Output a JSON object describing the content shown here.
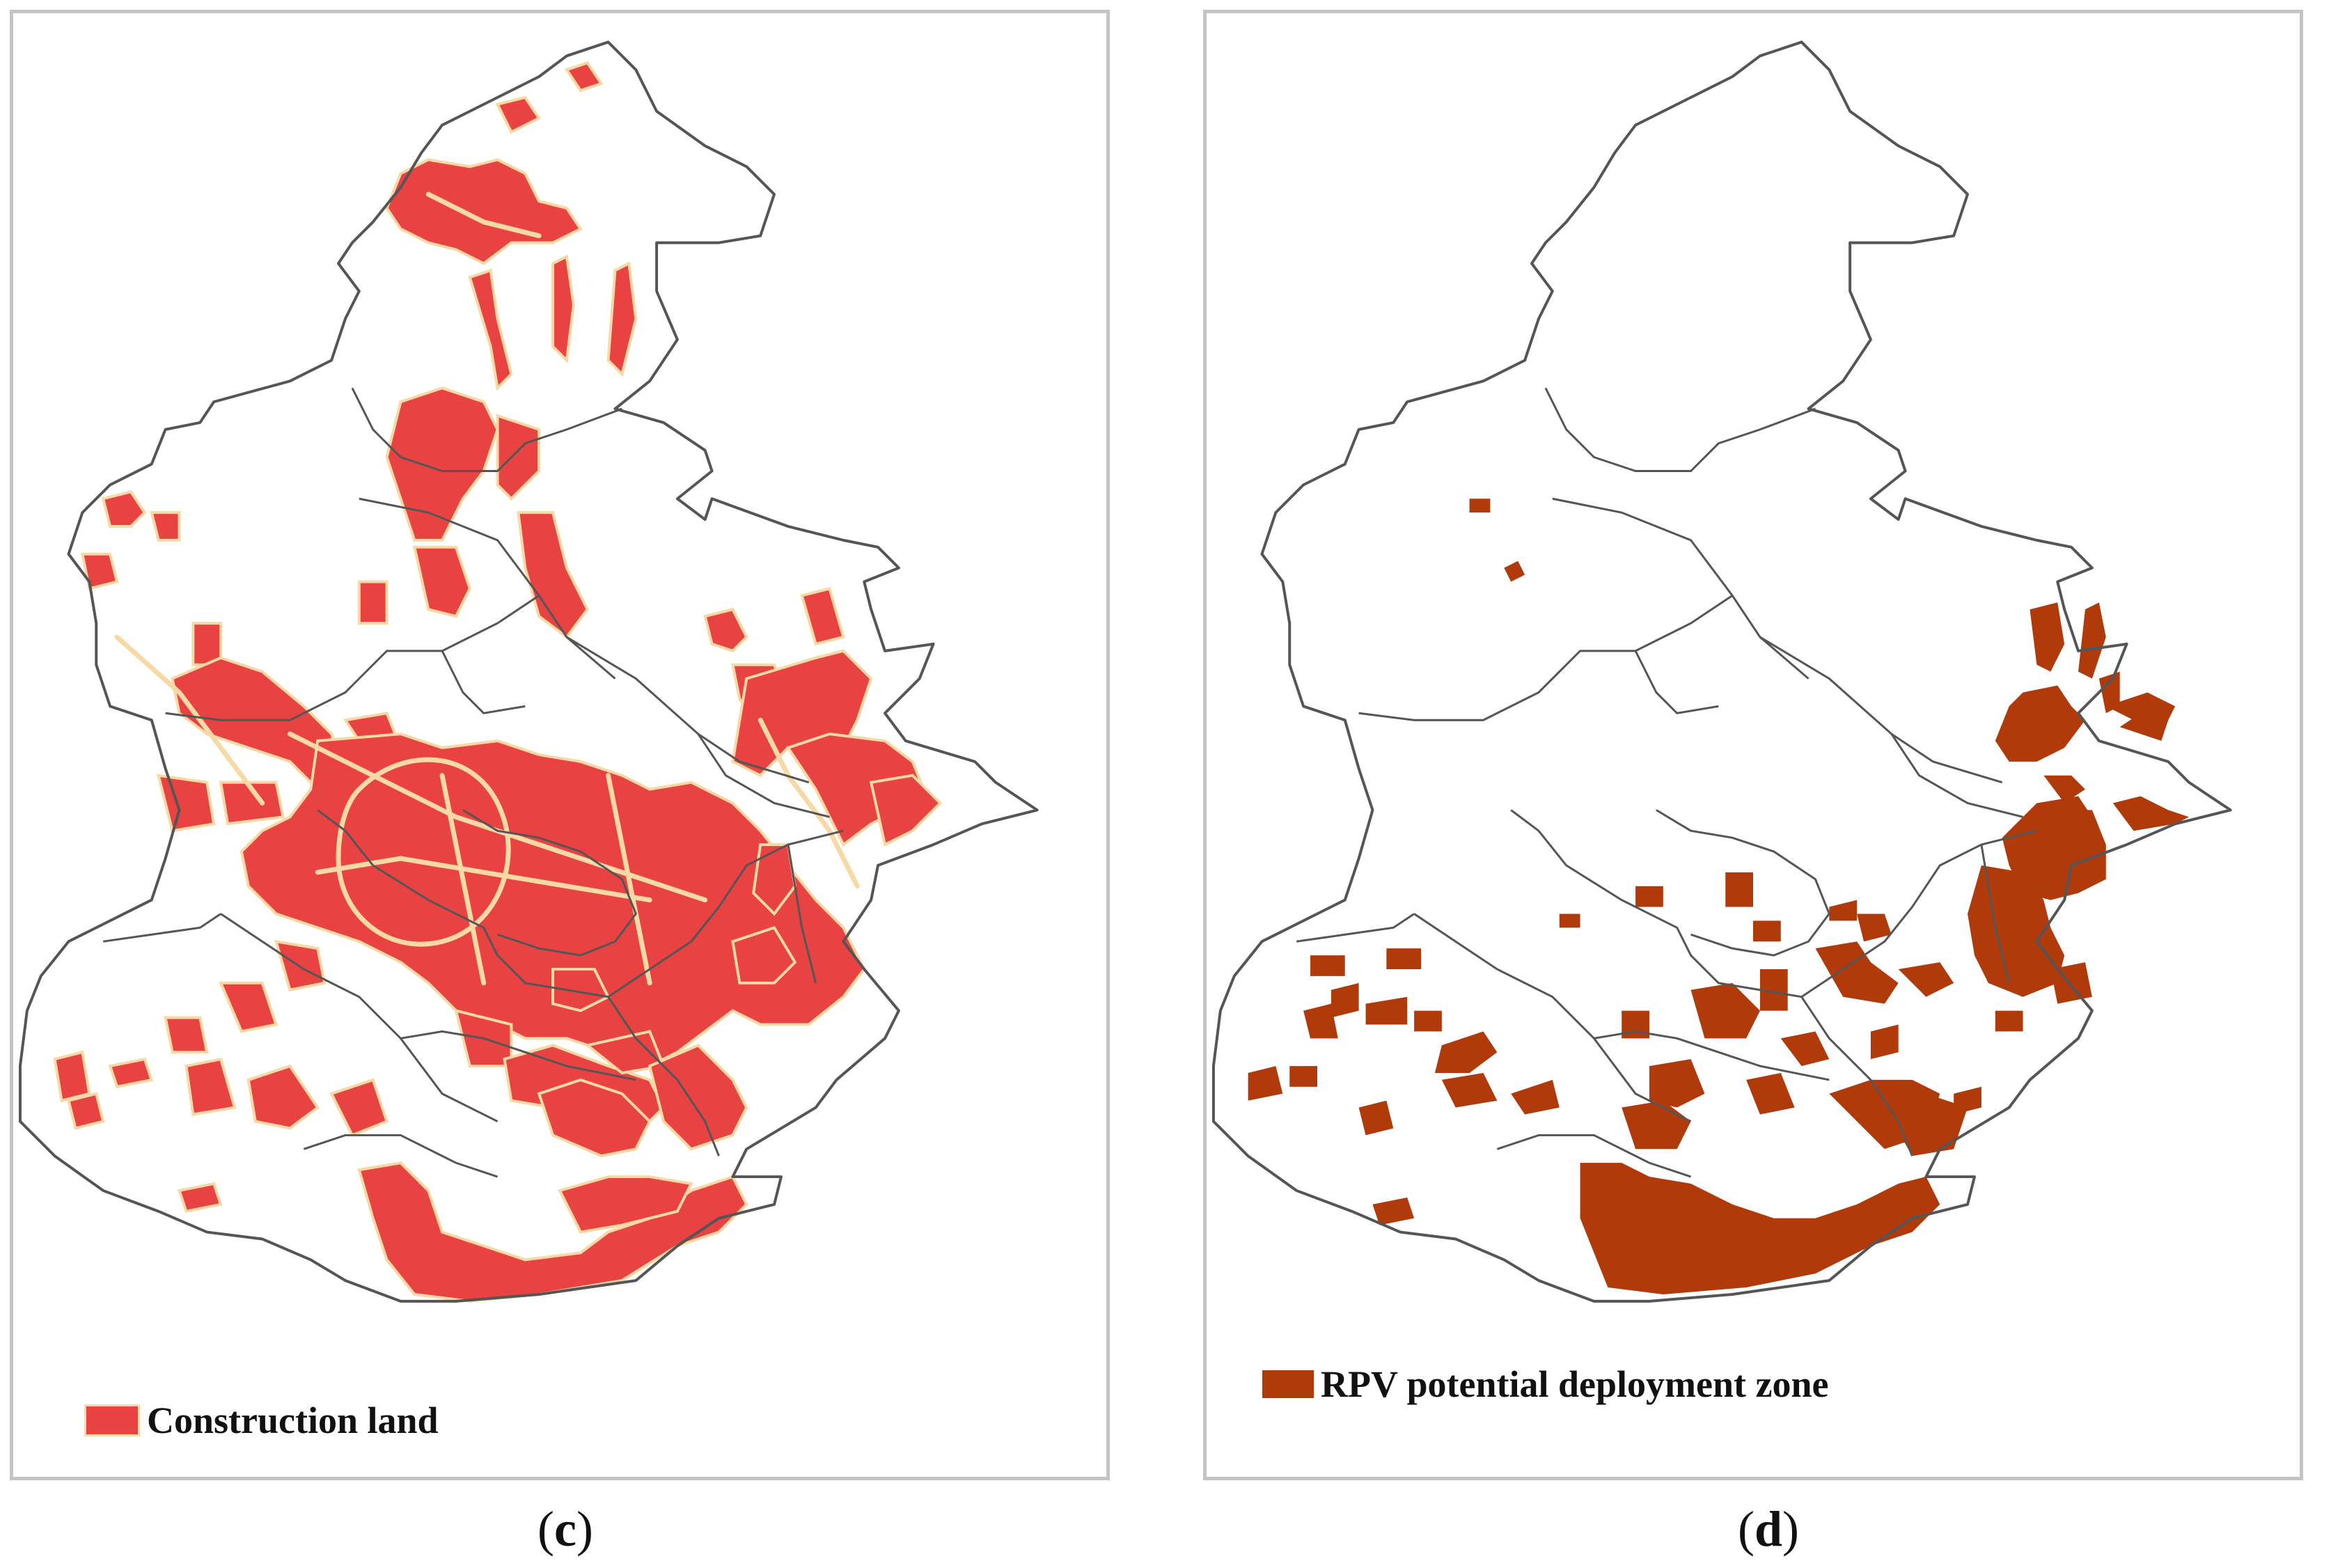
{
  "panels": [
    {
      "id": "c",
      "caption_open": "(",
      "caption_letter": "c",
      "caption_close": ")",
      "legend_label": "Construction land",
      "fill_color": "#e84242",
      "road_color": "#f6d9a4"
    },
    {
      "id": "d",
      "caption_open": "(",
      "caption_letter": "d",
      "caption_close": ")",
      "legend_label": "RPV potential deployment zone",
      "fill_color": "#b13a0b"
    }
  ],
  "colors": {
    "boundary": "#555555",
    "panel_border": "#c4c4c4"
  }
}
